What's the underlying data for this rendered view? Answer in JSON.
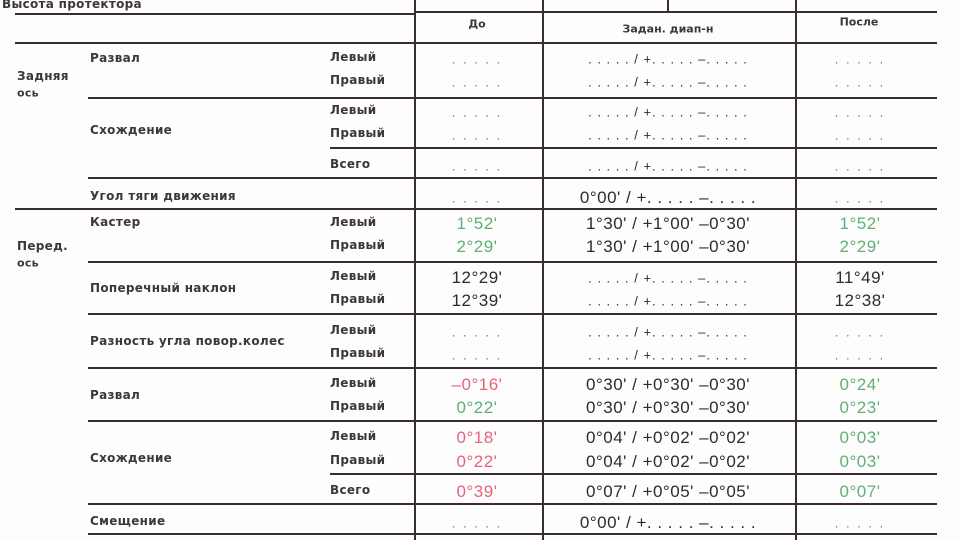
{
  "title": "Высота протектора",
  "headers": {
    "before": "До",
    "range": "Задан. диап-н",
    "after": "После"
  },
  "colors": {
    "in_range": "#5fb074",
    "out_of_range": "#e8627c",
    "neutral": "#2f2a2d"
  },
  "groups": [
    {
      "label_1": "Задняя",
      "label_2": "ось"
    },
    {
      "label_1": "Перед.",
      "label_2": "ось"
    }
  ],
  "params": [
    "Развал",
    "Схождение",
    "Угол тяги движения",
    "Кастер",
    "Поперечный наклон",
    "Разность угла повор.колес",
    "Развал",
    "Схождение",
    "Смещение"
  ],
  "rows": [
    {
      "side": "Левый",
      "before": ". . . . .",
      "range": ". . . . . / +. . . . . –. . . . .",
      "after": ". . . . .",
      "status": "dots"
    },
    {
      "side": "Правый",
      "before": ". . . . .",
      "range": ". . . . . / +. . . . . –. . . . .",
      "after": ". . . . .",
      "status": "dots"
    },
    {
      "side": "Левый",
      "before": ". . . . .",
      "range": ". . . . . / +. . . . . –. . . . .",
      "after": ". . . . .",
      "status": "dots"
    },
    {
      "side": "Правый",
      "before": ". . . . .",
      "range": ". . . . . / +. . . . . –. . . . .",
      "after": ". . . . .",
      "status": "dots"
    },
    {
      "side": "Всего",
      "before": ". . . . .",
      "range": ". . . . . / +. . . . . –. . . . .",
      "after": ". . . . .",
      "status": "dots"
    },
    {
      "side": "",
      "before": ". . . . .",
      "range": "0°00' / +. . . . . –. . . . .",
      "after": ". . . . .",
      "status": "dots"
    },
    {
      "side": "Левый",
      "before": "1°52'",
      "range": "1°30' / +1°00' –0°30'",
      "after": "1°52'",
      "status": "ok",
      "after_status": "ok"
    },
    {
      "side": "Правый",
      "before": "2°29'",
      "range": "1°30' / +1°00' –0°30'",
      "after": "2°29'",
      "status": "ok",
      "after_status": "ok"
    },
    {
      "side": "Левый",
      "before": "12°29'",
      "range": ". . . . . / +. . . . . –. . . . .",
      "after": "11°49'",
      "status": "neutral",
      "after_status": "neutral"
    },
    {
      "side": "Правый",
      "before": "12°39'",
      "range": ". . . . . / +. . . . . –. . . . .",
      "after": "12°38'",
      "status": "neutral",
      "after_status": "neutral"
    },
    {
      "side": "Левый",
      "before": ". . . . .",
      "range": ". . . . . / +. . . . . –. . . . .",
      "after": ". . . . .",
      "status": "dots"
    },
    {
      "side": "Правый",
      "before": ". . . . .",
      "range": ". . . . . / +. . . . . –. . . . .",
      "after": ". . . . .",
      "status": "dots"
    },
    {
      "side": "Левый",
      "before": "–0°16'",
      "range": "0°30' / +0°30' –0°30'",
      "after": "0°24'",
      "status": "out",
      "after_status": "ok"
    },
    {
      "side": "Правый",
      "before": "0°22'",
      "range": "0°30' / +0°30' –0°30'",
      "after": "0°23'",
      "status": "ok",
      "after_status": "ok"
    },
    {
      "side": "Левый",
      "before": "0°18'",
      "range": "0°04' / +0°02' –0°02'",
      "after": "0°03'",
      "status": "out",
      "after_status": "ok"
    },
    {
      "side": "Правый",
      "before": "0°22'",
      "range": "0°04' / +0°02' –0°02'",
      "after": "0°03'",
      "status": "out",
      "after_status": "ok"
    },
    {
      "side": "Всего",
      "before": "0°39'",
      "range": "0°07' / +0°05' –0°05'",
      "after": "0°07'",
      "status": "out",
      "after_status": "ok"
    },
    {
      "side": "",
      "before": ". . . . .",
      "range": "0°00' / +. . . . . –. . . . .",
      "after": ". . . . .",
      "status": "dots"
    }
  ]
}
